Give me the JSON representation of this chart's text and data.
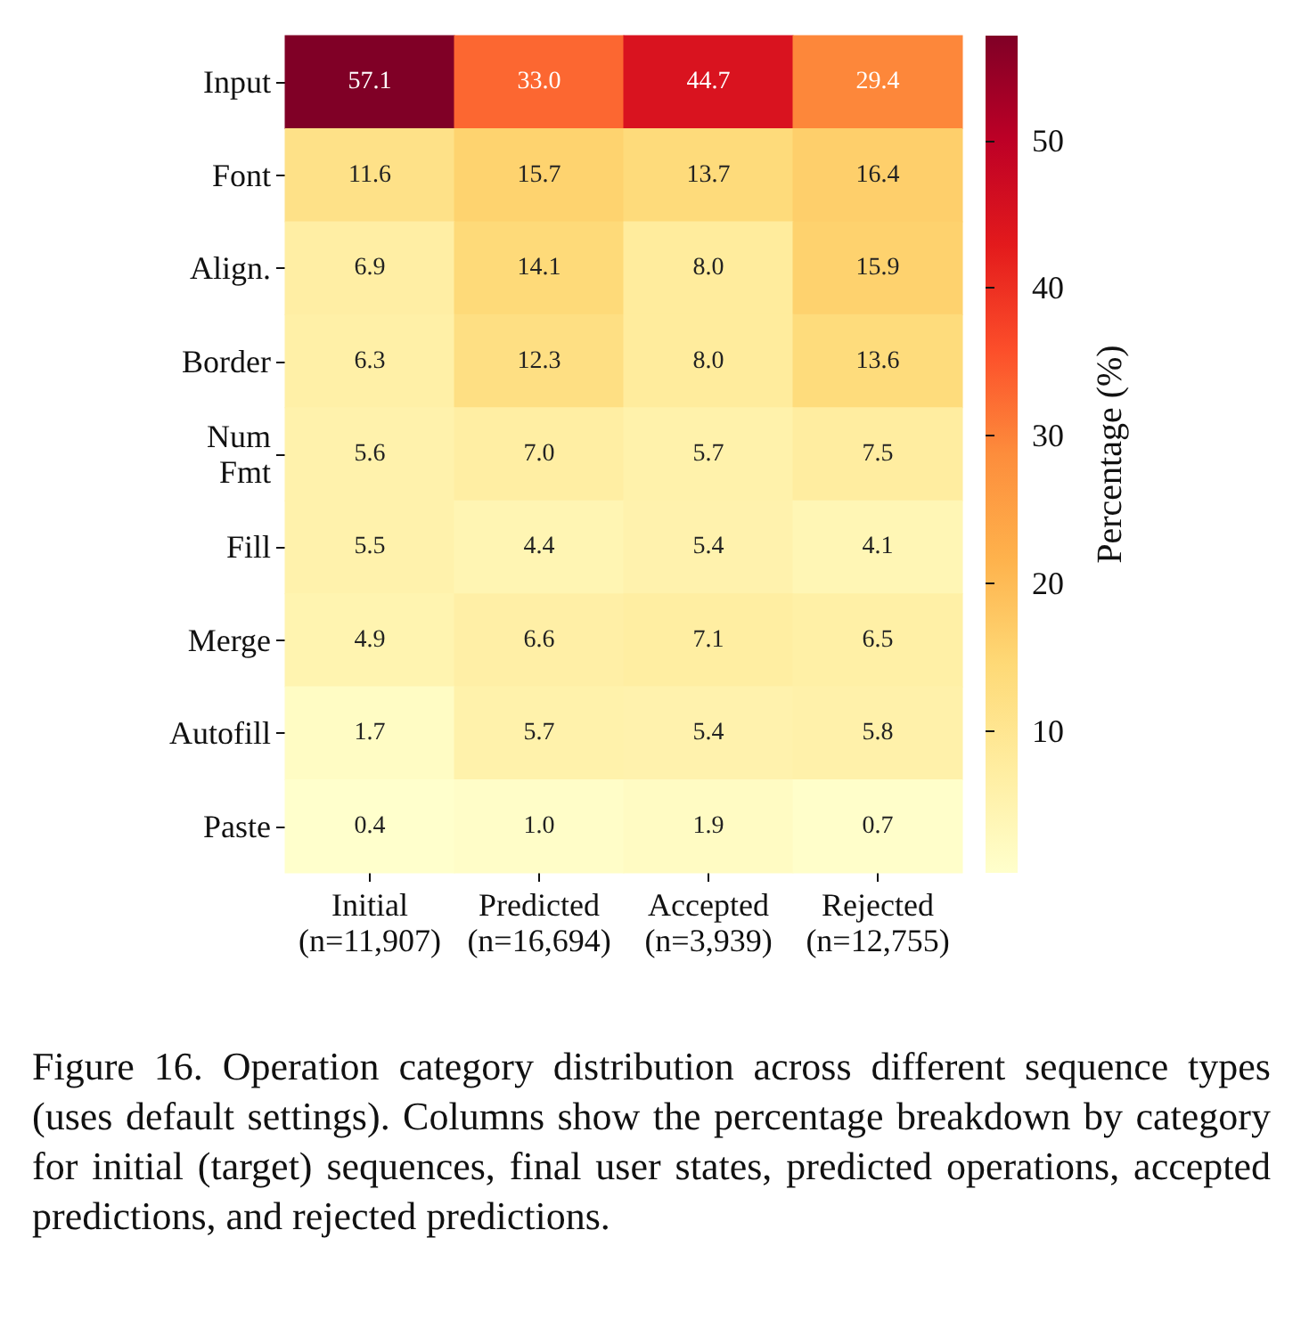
{
  "chart_data": {
    "type": "heatmap",
    "categories": [
      "Initial\n(n=11,907)",
      "Predicted\n(n=16,694)",
      "Accepted\n(n=3,939)",
      "Rejected\n(n=12,755)"
    ],
    "y_categories": [
      "Input",
      "Font",
      "Align.",
      "Border",
      "Num\nFmt",
      "Fill",
      "Merge",
      "Autofill",
      "Paste"
    ],
    "cells": [
      [
        57.1,
        33.0,
        44.7,
        29.4
      ],
      [
        11.6,
        15.7,
        13.7,
        16.4
      ],
      [
        6.9,
        14.1,
        8.0,
        15.9
      ],
      [
        6.3,
        12.3,
        8.0,
        13.6
      ],
      [
        5.6,
        7.0,
        5.7,
        7.5
      ],
      [
        5.5,
        4.4,
        5.4,
        4.1
      ],
      [
        4.9,
        6.6,
        7.1,
        6.5
      ],
      [
        1.7,
        5.7,
        5.4,
        5.8
      ],
      [
        0.4,
        1.0,
        1.9,
        0.7
      ]
    ],
    "cell_labels": [
      [
        "57.1",
        "33.0",
        "44.7",
        "29.4"
      ],
      [
        "11.6",
        "15.7",
        "13.7",
        "16.4"
      ],
      [
        "6.9",
        "14.1",
        "8.0",
        "15.9"
      ],
      [
        "6.3",
        "12.3",
        "8.0",
        "13.6"
      ],
      [
        "5.6",
        "7.0",
        "5.7",
        "7.5"
      ],
      [
        "5.5",
        "4.4",
        "5.4",
        "4.1"
      ],
      [
        "4.9",
        "6.6",
        "7.1",
        "6.5"
      ],
      [
        "1.7",
        "5.7",
        "5.4",
        "5.8"
      ],
      [
        "0.4",
        "1.0",
        "1.9",
        "0.7"
      ]
    ],
    "data_labels": true,
    "clabel": "Percentage (%)",
    "clim": [
      0.4,
      57.1
    ],
    "cticks": [
      10,
      20,
      30,
      40,
      50
    ],
    "annotations": [
      "Figure 16. Operation category distribution across different sequence types (uses default settings). Columns show the percentage breakdown by category for initial (target) sequences, final user states, predicted operations, accepted predictions, and rejected predictions."
    ]
  }
}
